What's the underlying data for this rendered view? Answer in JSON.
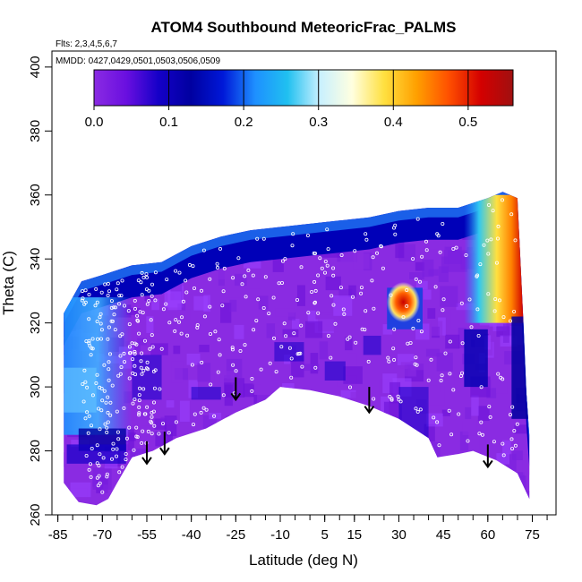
{
  "chart_data": {
    "type": "heatmap",
    "title": "ATOM4 Southbound MeteoricFrac_PALMS",
    "subtitle_lines": [
      "Flts: 2,3,4,5,6,7",
      "MMDD: 0427,0429,0501,0503,0506,0509"
    ],
    "xlabel": "Latitude (deg N)",
    "ylabel": "Theta (C)",
    "xlim": [
      -87,
      83
    ],
    "ylim": [
      260,
      405
    ],
    "x_ticks": [
      -85,
      -70,
      -55,
      -40,
      -25,
      -10,
      5,
      15,
      30,
      45,
      60,
      75
    ],
    "y_ticks": [
      260,
      280,
      300,
      320,
      340,
      360,
      380,
      400
    ],
    "colorbar": {
      "ticks": [
        "0.0",
        "0.1",
        "0.2",
        "0.3",
        "0.4",
        "0.5"
      ],
      "range": [
        0,
        0.56
      ],
      "colors": [
        "#8a2be2",
        "#6a0fe0",
        "#1500c8",
        "#0000a0",
        "#0018d8",
        "#1e90ff",
        "#20c0f0",
        "#c8f0ff",
        "#ffffe0",
        "#ffe040",
        "#ffa000",
        "#ff5000",
        "#d40000",
        "#a01010"
      ]
    },
    "data_boundary": {
      "top": [
        [
          -83,
          323
        ],
        [
          -77,
          333
        ],
        [
          -70,
          335
        ],
        [
          -60,
          338
        ],
        [
          -50,
          339
        ],
        [
          -40,
          344
        ],
        [
          -30,
          347
        ],
        [
          -20,
          349
        ],
        [
          -10,
          350
        ],
        [
          0,
          351
        ],
        [
          10,
          352
        ],
        [
          20,
          353
        ],
        [
          30,
          355
        ],
        [
          40,
          356
        ],
        [
          50,
          356
        ],
        [
          60,
          359
        ],
        [
          65,
          361
        ],
        [
          70,
          359
        ],
        [
          72,
          320
        ],
        [
          73,
          298
        ],
        [
          74,
          285
        ],
        [
          74,
          265
        ]
      ],
      "bottom": [
        [
          -83,
          270
        ],
        [
          -78,
          264
        ],
        [
          -72,
          263
        ],
        [
          -68,
          265
        ],
        [
          -65,
          270
        ],
        [
          -60,
          278
        ],
        [
          -53,
          280
        ],
        [
          -45,
          284
        ],
        [
          -35,
          287
        ],
        [
          -25,
          292
        ],
        [
          -15,
          296
        ],
        [
          -10,
          300
        ],
        [
          0,
          299
        ],
        [
          10,
          297
        ],
        [
          20,
          294
        ],
        [
          30,
          290
        ],
        [
          40,
          284
        ],
        [
          43,
          278
        ],
        [
          50,
          279
        ],
        [
          55,
          280
        ],
        [
          63,
          277
        ],
        [
          70,
          273
        ],
        [
          74,
          265
        ]
      ]
    },
    "features": [
      {
        "kind": "high_core",
        "x": [
          28,
          35
        ],
        "y": [
          323,
          330
        ],
        "value": 0.45
      },
      {
        "kind": "high_region",
        "x": [
          60,
          72
        ],
        "y": [
          320,
          360
        ],
        "value": 0.45
      },
      {
        "kind": "moderate_region",
        "x": [
          -83,
          -60
        ],
        "y": [
          285,
          328
        ],
        "value": 0.2
      }
    ],
    "arrows": [
      {
        "x": -55,
        "y_top": 283,
        "y_tip": 276
      },
      {
        "x": -49,
        "y_top": 286,
        "y_tip": 279
      },
      {
        "x": -25,
        "y_top": 303,
        "y_tip": 296
      },
      {
        "x": 20,
        "y_top": 300,
        "y_tip": 292
      },
      {
        "x": 60,
        "y_top": 282,
        "y_tip": 275
      }
    ],
    "grid": false,
    "legend": "colorbar top"
  }
}
